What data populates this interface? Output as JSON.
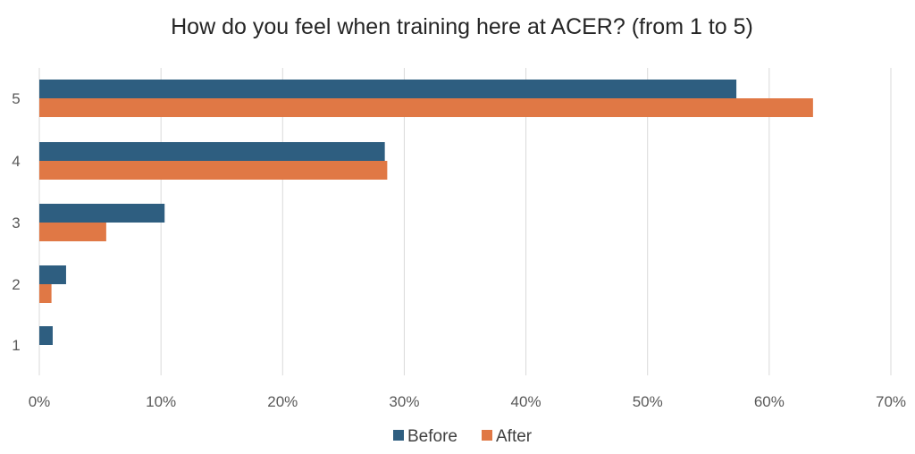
{
  "chart_data": {
    "type": "bar",
    "orientation": "horizontal",
    "title": "How do you feel when training here at ACER? (from 1 to 5)",
    "categories": [
      "5",
      "4",
      "3",
      "2",
      "1"
    ],
    "series": [
      {
        "name": "Before",
        "color": "#2e5e80",
        "values": [
          57.3,
          28.4,
          10.3,
          2.2,
          1.1
        ]
      },
      {
        "name": "After",
        "color": "#e07845",
        "values": [
          63.6,
          28.6,
          5.5,
          1.0,
          0
        ]
      }
    ],
    "x_ticks": [
      "0%",
      "10%",
      "20%",
      "30%",
      "40%",
      "50%",
      "60%",
      "70%"
    ],
    "xlim": [
      0,
      70
    ],
    "xlabel": "",
    "ylabel": "",
    "grid": "vertical",
    "legend_position": "bottom"
  }
}
